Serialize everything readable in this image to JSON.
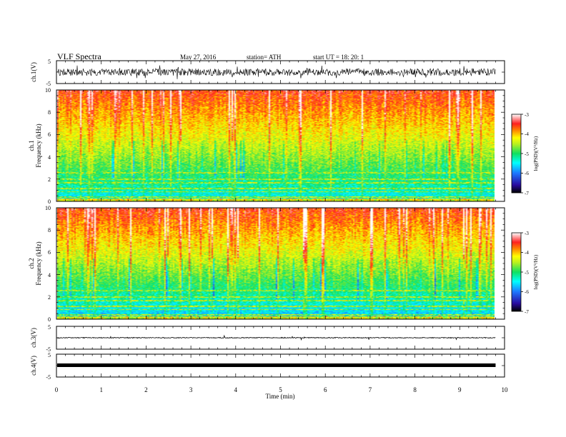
{
  "header": {
    "title": "VLF  Spectra",
    "date": "May 27, 2016",
    "station": "station= ATH",
    "start": "start  UT  =     18: 20: 1"
  },
  "chart_data": [
    {
      "type": "line",
      "panel": "ch1-waveform",
      "ylabel": "ch.1(V)",
      "ylim": [
        -5,
        5
      ],
      "y_ticks": [
        "5",
        "-5"
      ],
      "xlim": [
        0,
        10
      ],
      "description_values": {
        "mean": 0.0,
        "envelope": [
          -1.6,
          1.6
        ]
      }
    },
    {
      "type": "heatmap",
      "panel": "ch1-spectrogram",
      "ylabel_channel": "ch.1",
      "ylabel": "Frequency  (kHz)",
      "ylim": [
        0,
        10
      ],
      "y_ticks": [
        "0",
        "2",
        "4",
        "6",
        "8",
        "10"
      ],
      "xlim": [
        0,
        9.8
      ],
      "colorbar": {
        "label": "log(PSD)(V²/Hz)",
        "range": [
          -7,
          -3
        ],
        "ticks": [
          "-3",
          "-4",
          "-5",
          "-6",
          "-7"
        ]
      }
    },
    {
      "type": "heatmap",
      "panel": "ch2-spectrogram",
      "ylabel_channel": "ch.2",
      "ylabel": "Frequency  (kHz)",
      "ylim": [
        0,
        10
      ],
      "y_ticks": [
        "0",
        "2",
        "4",
        "6",
        "8",
        "10"
      ],
      "xlim": [
        0,
        9.8
      ],
      "colorbar": {
        "label": "log(PSD)(V²/Hz)",
        "range": [
          -7,
          -3
        ],
        "ticks": [
          "-3",
          "-4",
          "-5",
          "-6",
          "-7"
        ]
      }
    },
    {
      "type": "line",
      "panel": "ch3-waveform",
      "ylabel": "ch.3(V)",
      "ylim": [
        -5,
        5
      ],
      "y_ticks": [
        "5",
        "-5"
      ],
      "xlim": [
        0,
        10
      ],
      "description_values": {
        "mean": 0.0,
        "envelope": [
          -0.2,
          0.2
        ]
      }
    },
    {
      "type": "line",
      "panel": "ch4-waveform",
      "ylabel": "ch.4(V)",
      "ylim": [
        -5,
        5
      ],
      "y_ticks": [
        "5",
        "-5"
      ],
      "xlim": [
        0,
        10
      ],
      "description_values": {
        "mean": 0.0,
        "envelope": [
          -0.3,
          0.3
        ]
      }
    }
  ],
  "x_axis": {
    "label": "Time  (min)",
    "ticks": [
      "0",
      "1",
      "2",
      "3",
      "4",
      "5",
      "6",
      "7",
      "8",
      "9",
      "10"
    ]
  }
}
